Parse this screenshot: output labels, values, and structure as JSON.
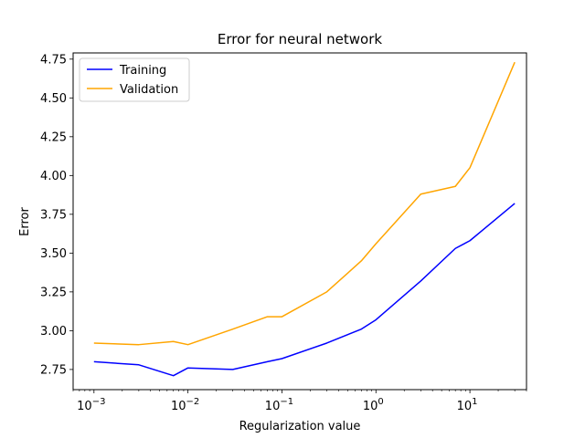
{
  "chart_data": {
    "type": "line",
    "title": "Error for neural network",
    "xlabel": "Regularization value",
    "ylabel": "Error",
    "xscale": "log",
    "xlim": [
      0.0006,
      40
    ],
    "ylim": [
      2.62,
      4.79
    ],
    "x_ticks": [
      {
        "value": 0.001,
        "base": "10",
        "exp": "−3"
      },
      {
        "value": 0.01,
        "base": "10",
        "exp": "−2"
      },
      {
        "value": 0.1,
        "base": "10",
        "exp": "−1"
      },
      {
        "value": 1,
        "base": "10",
        "exp": "0"
      },
      {
        "value": 10,
        "base": "10",
        "exp": "1"
      }
    ],
    "y_ticks": [
      "2.75",
      "3.00",
      "3.25",
      "3.50",
      "3.75",
      "4.00",
      "4.25",
      "4.50",
      "4.75"
    ],
    "grid": false,
    "legend_position": "top-left",
    "series": [
      {
        "name": "Training",
        "color": "#0000ff",
        "x": [
          0.001,
          0.003,
          0.007,
          0.01,
          0.03,
          0.07,
          0.1,
          0.3,
          0.7,
          1,
          3,
          7,
          10,
          30
        ],
        "y": [
          2.8,
          2.78,
          2.71,
          2.76,
          2.75,
          2.8,
          2.82,
          2.92,
          3.01,
          3.07,
          3.32,
          3.53,
          3.58,
          3.82
        ]
      },
      {
        "name": "Validation",
        "color": "#ffa500",
        "x": [
          0.001,
          0.003,
          0.007,
          0.01,
          0.03,
          0.07,
          0.1,
          0.3,
          0.7,
          1,
          3,
          7,
          10,
          30
        ],
        "y": [
          2.92,
          2.91,
          2.93,
          2.91,
          3.01,
          3.09,
          3.09,
          3.25,
          3.45,
          3.56,
          3.88,
          3.93,
          4.05,
          4.73
        ]
      }
    ]
  }
}
